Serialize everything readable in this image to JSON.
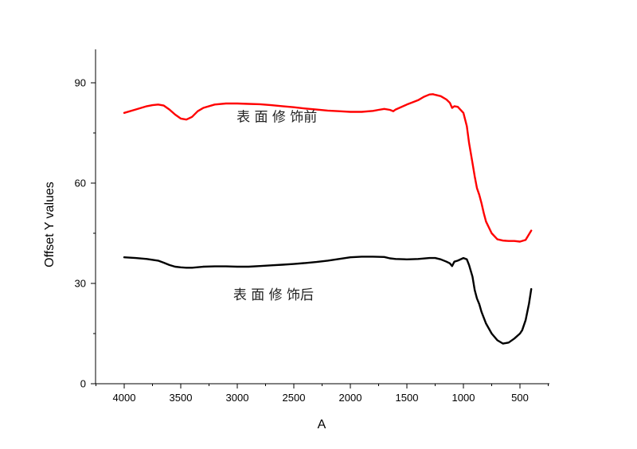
{
  "chart_data": {
    "type": "line",
    "title": "",
    "xlabel": "A",
    "ylabel": "Offset Y values",
    "xlim": [
      4250,
      250
    ],
    "ylim": [
      0,
      100
    ],
    "x_reversed": true,
    "xticks": [
      4000,
      3500,
      3000,
      2500,
      2000,
      1500,
      1000,
      500
    ],
    "yticks": [
      0,
      30,
      60,
      90
    ],
    "grid": false,
    "legend": "none",
    "annotations": [
      {
        "id": "annot-top",
        "text": "表 面 修 饰前",
        "x": 2650,
        "y": 78.5
      },
      {
        "id": "annot-bottom",
        "text": "表 面 修 饰后",
        "x": 2680,
        "y": 25.2
      }
    ],
    "series": [
      {
        "color": "#ff0000",
        "x": [
          4000,
          3900,
          3800,
          3750,
          3700,
          3650,
          3600,
          3550,
          3500,
          3450,
          3400,
          3350,
          3300,
          3200,
          3100,
          3000,
          2900,
          2800,
          2700,
          2600,
          2500,
          2400,
          2300,
          2200,
          2100,
          2000,
          1900,
          1800,
          1750,
          1700,
          1650,
          1620,
          1600,
          1500,
          1400,
          1350,
          1300,
          1270,
          1250,
          1200,
          1150,
          1120,
          1100,
          1080,
          1050,
          1000,
          970,
          950,
          920,
          900,
          880,
          860,
          840,
          820,
          800,
          750,
          700,
          650,
          600,
          550,
          500,
          450,
          400
        ],
        "values": [
          81,
          82,
          83,
          83.3,
          83.5,
          83.2,
          82,
          80.5,
          79.3,
          79,
          79.8,
          81.5,
          82.5,
          83.5,
          83.8,
          83.8,
          83.7,
          83.6,
          83.3,
          83,
          82.7,
          82.3,
          82,
          81.7,
          81.5,
          81.3,
          81.3,
          81.6,
          81.9,
          82.2,
          81.9,
          81.5,
          82,
          83.5,
          84.8,
          85.8,
          86.5,
          86.6,
          86.4,
          86,
          85,
          84,
          82.5,
          83,
          82.8,
          81,
          77,
          72,
          66,
          62,
          58.5,
          56.5,
          54,
          51,
          48.5,
          45,
          43.2,
          42.8,
          42.7,
          42.7,
          42.5,
          43,
          45.8
        ]
      },
      {
        "color": "#000000",
        "x": [
          4000,
          3900,
          3800,
          3700,
          3650,
          3600,
          3550,
          3500,
          3450,
          3400,
          3300,
          3200,
          3100,
          3000,
          2900,
          2800,
          2700,
          2600,
          2500,
          2400,
          2300,
          2200,
          2100,
          2000,
          1900,
          1800,
          1700,
          1650,
          1600,
          1500,
          1400,
          1300,
          1250,
          1200,
          1150,
          1120,
          1100,
          1080,
          1050,
          1000,
          970,
          950,
          920,
          900,
          880,
          860,
          840,
          800,
          750,
          700,
          650,
          600,
          550,
          500,
          480,
          450,
          420,
          400
        ],
        "values": [
          37.8,
          37.6,
          37.3,
          36.8,
          36.2,
          35.5,
          35,
          34.8,
          34.7,
          34.7,
          35,
          35.1,
          35.1,
          35,
          35,
          35.2,
          35.4,
          35.6,
          35.8,
          36.1,
          36.4,
          36.8,
          37.3,
          37.8,
          38,
          38,
          37.9,
          37.5,
          37.3,
          37.2,
          37.3,
          37.6,
          37.6,
          37.2,
          36.5,
          36,
          35.2,
          36.5,
          36.8,
          37.6,
          37.2,
          35.5,
          32,
          28,
          25.5,
          23.8,
          21.5,
          18,
          15,
          13,
          12,
          12.3,
          13.5,
          15,
          16,
          19,
          24,
          28.3
        ]
      }
    ]
  }
}
